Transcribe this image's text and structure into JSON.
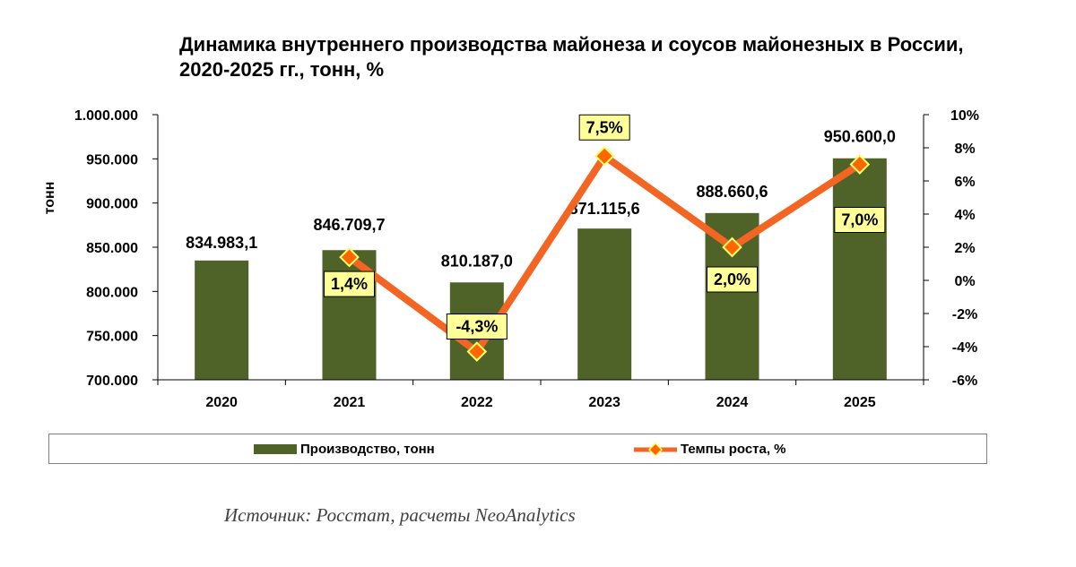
{
  "chart_data": {
    "type": "bar",
    "title": "Динамика внутреннего производства майонеза и соусов майонезных в России, 2020-2025 гг., тонн, %",
    "categories": [
      "2020",
      "2021",
      "2022",
      "2023",
      "2024",
      "2025"
    ],
    "series": [
      {
        "name": "Производство, тонн",
        "type": "bar",
        "axis": "left",
        "color": "#4f6228",
        "values": [
          834983.1,
          846709.7,
          810187.0,
          871115.6,
          888660.6,
          950600.0
        ],
        "labels": [
          "834.983,1",
          "846.709,7",
          "810.187,0",
          "871.115,6",
          "888.660,6",
          "950.600,0"
        ]
      },
      {
        "name": "Темпы роста, %",
        "type": "line",
        "axis": "right",
        "color": "#f26522",
        "marker_color": "#ff6600",
        "marker_border": "#ffff66",
        "values": [
          null,
          1.4,
          -4.3,
          7.5,
          2.0,
          7.0
        ],
        "labels": [
          "",
          "1,4%",
          "-4,3%",
          "7,5%",
          "2,0%",
          "7,0%"
        ]
      }
    ],
    "ylabel": "тонн",
    "xlabel": "",
    "ylim": [
      700000,
      1000000
    ],
    "y_ticks": [
      700000,
      750000,
      800000,
      850000,
      900000,
      950000,
      1000000
    ],
    "y_tick_labels": [
      "700.000",
      "750.000",
      "800.000",
      "850.000",
      "900.000",
      "950.000",
      "1.000.000"
    ],
    "y2lim": [
      -6,
      10
    ],
    "y2_ticks": [
      -6,
      -4,
      -2,
      0,
      2,
      4,
      6,
      8,
      10
    ],
    "y2_tick_labels": [
      "-6%",
      "-4%",
      "-2%",
      "0%",
      "2%",
      "4%",
      "6%",
      "8%",
      "10%"
    ],
    "grid": false,
    "legend_position": "bottom",
    "label_box_fill": "#ffff99"
  },
  "legend": {
    "bar_label": "Производство, тонн",
    "line_label": "Темпы роста, %"
  },
  "source": "Источник: Росстат, расчеты NeoAnalytics"
}
